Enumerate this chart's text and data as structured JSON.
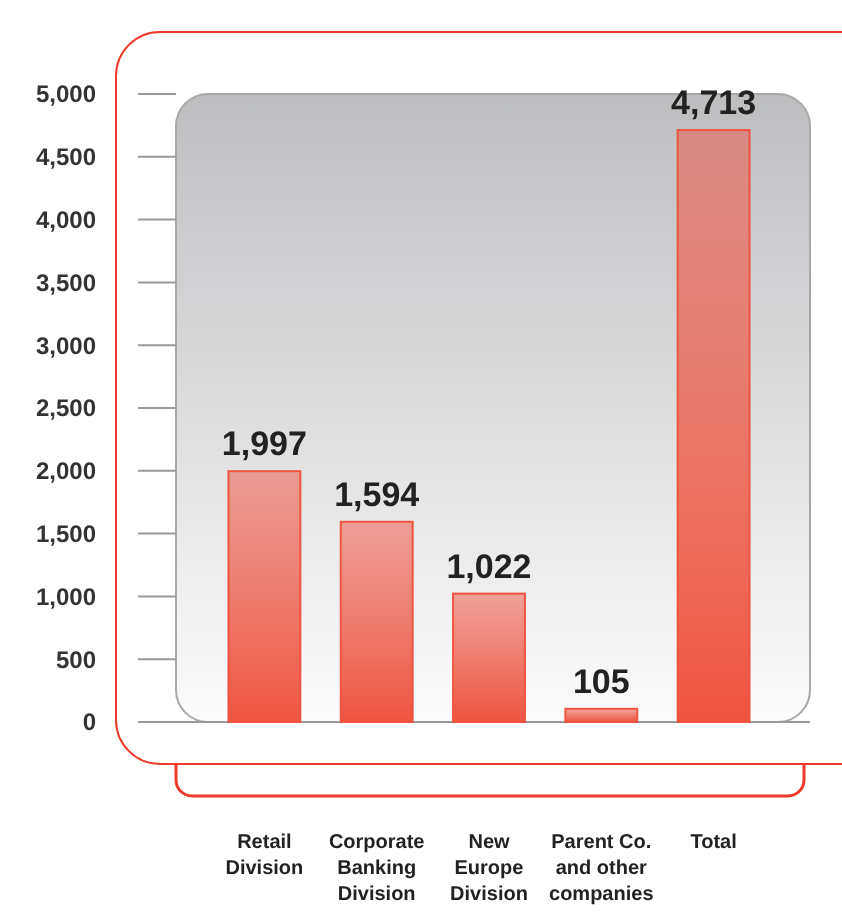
{
  "chart_data": {
    "type": "bar",
    "categories": [
      "Retail Division",
      "Corporate Banking Division",
      "New Europe Division",
      "Parent Co. and other companies",
      "Total"
    ],
    "values": [
      1997,
      1594,
      1022,
      105,
      4713
    ],
    "color": "#ee5440",
    "ylim": [
      0,
      5000
    ],
    "yticks": [
      {
        "value": 0,
        "label": "0"
      },
      {
        "value": 500,
        "label": "500"
      },
      {
        "value": 1000,
        "label": "1,000"
      },
      {
        "value": 1500,
        "label": "1,500"
      },
      {
        "value": 2000,
        "label": "2,000"
      },
      {
        "value": 2500,
        "label": "2,500"
      },
      {
        "value": 3000,
        "label": "3,000"
      },
      {
        "value": 3500,
        "label": "3,500"
      },
      {
        "value": 4000,
        "label": "4,000"
      },
      {
        "value": 4500,
        "label": "4,500"
      },
      {
        "value": 5000,
        "label": "5,000"
      }
    ],
    "value_labels": [
      "1,997",
      "1,594",
      "1,022",
      "105",
      "4,713"
    ]
  }
}
